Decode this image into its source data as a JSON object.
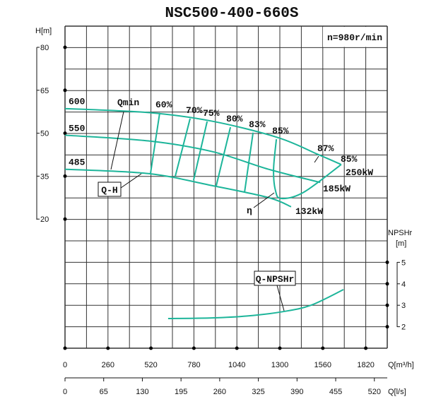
{
  "chart_data": {
    "type": "line",
    "title": "NSC500-400-660S",
    "speed_label": "n=980r/min",
    "grid": true,
    "colors": {
      "curve": "#1db59a",
      "grid": "#222222"
    },
    "x_axis": {
      "label": "Q[m³/h]",
      "ticks": [
        0,
        260,
        520,
        780,
        1040,
        1300,
        1560,
        1820
      ],
      "range": [
        0,
        1950
      ]
    },
    "x2_axis": {
      "label": "Q[l/s]",
      "ticks": [
        0,
        65,
        130,
        195,
        260,
        325,
        390,
        455,
        520
      ]
    },
    "y_axis": {
      "label": "H[m]",
      "ticks": [
        80,
        65,
        50,
        35,
        20
      ],
      "range": [
        87.5,
        -25
      ]
    },
    "y2_axis": {
      "label_line1": "NPSHr",
      "label_line2": "[m]",
      "ticks": [
        5,
        4,
        3,
        2
      ],
      "range": [
        1,
        16
      ]
    },
    "head_curves": [
      {
        "name": "600",
        "power_label": "250kW",
        "points": [
          [
            0,
            58.6
          ],
          [
            505,
            57.2
          ],
          [
            890,
            54.2
          ],
          [
            1287,
            48.5
          ],
          [
            1530,
            42.6
          ],
          [
            1670,
            39.1
          ]
        ]
      },
      {
        "name": "550",
        "power_label": "185kW",
        "points": [
          [
            0,
            49.3
          ],
          [
            505,
            47.3
          ],
          [
            890,
            43.6
          ],
          [
            1232,
            37.4
          ],
          [
            1545,
            32.8
          ]
        ]
      },
      {
        "name": "485",
        "power_label": "132kW",
        "points": [
          [
            0,
            37.4
          ],
          [
            505,
            35.9
          ],
          [
            890,
            31.7
          ],
          [
            1232,
            27.5
          ],
          [
            1368,
            24.3
          ]
        ]
      }
    ],
    "efficiency_lines": [
      {
        "name": "60%",
        "points": [
          [
            573,
            57.1
          ],
          [
            517,
            35.8
          ]
        ]
      },
      {
        "name": "70%",
        "points": [
          [
            757,
            55.1
          ],
          [
            667,
            34.9
          ]
        ]
      },
      {
        "name": "75%",
        "points": [
          [
            860,
            54.1
          ],
          [
            778,
            33.6
          ]
        ]
      },
      {
        "name": "80%",
        "points": [
          [
            1001,
            52.1
          ],
          [
            915,
            31.6
          ]
        ]
      },
      {
        "name": "83%",
        "points": [
          [
            1138,
            50.2
          ],
          [
            1086,
            29.2
          ]
        ]
      },
      {
        "name": "85%",
        "points": [
          [
            1279,
            47.9
          ],
          [
            1262,
            37.3
          ],
          [
            1274,
            29.9
          ],
          [
            1309,
            27.2
          ],
          [
            1445,
            29.4
          ],
          [
            1672,
            39.1
          ]
        ]
      }
    ],
    "extra_labels": {
      "eta87": "87%",
      "eta85_right": "85%",
      "qmin": "Qmin",
      "qh": "Q-H",
      "eta": "η",
      "qnpsh": "Q-NPSHr"
    },
    "npsh_curve": {
      "name": "Q-NPSHr",
      "points": [
        [
          624,
          2.38
        ],
        [
          889,
          2.41
        ],
        [
          1103,
          2.5
        ],
        [
          1317,
          2.7
        ],
        [
          1488,
          3.0
        ],
        [
          1685,
          3.73
        ]
      ]
    }
  }
}
